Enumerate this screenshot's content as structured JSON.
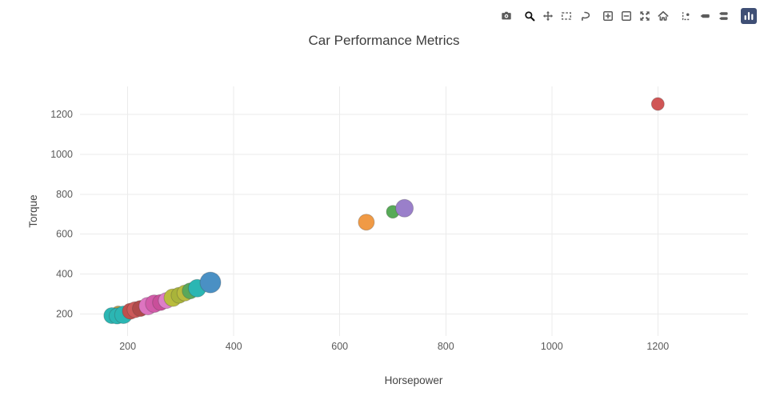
{
  "title": "Car Performance Metrics",
  "colors": {
    "logo_bg": "#3f4f75",
    "icon": "#5b5b5b",
    "grid": "#ebebeb",
    "tick_text": "#5a5a5a",
    "title_text": "#3d3d3d"
  },
  "modebar": {
    "logo_label": "Produced with Plotly",
    "groups": [
      [
        {
          "name": "camera",
          "label": "Download plot as a png",
          "active": false
        }
      ],
      [
        {
          "name": "zoom",
          "label": "Zoom",
          "active": true
        },
        {
          "name": "pan",
          "label": "Pan",
          "active": false
        },
        {
          "name": "box-select",
          "label": "Box Select",
          "active": false
        },
        {
          "name": "lasso",
          "label": "Lasso Select",
          "active": false
        }
      ],
      [
        {
          "name": "zoom-in",
          "label": "Zoom in",
          "active": false
        },
        {
          "name": "zoom-out",
          "label": "Zoom out",
          "active": false
        },
        {
          "name": "autoscale",
          "label": "Autoscale",
          "active": false
        },
        {
          "name": "home",
          "label": "Reset axes",
          "active": false
        }
      ],
      [
        {
          "name": "spikelines",
          "label": "Toggle Spike Lines",
          "active": false
        },
        {
          "name": "hover-closest",
          "label": "Show closest data on hover",
          "active": false
        },
        {
          "name": "hover-compare",
          "label": "Compare data on hover",
          "active": false
        }
      ]
    ]
  },
  "chart_data": {
    "type": "scatter",
    "title": "Car Performance Metrics",
    "xlabel": "Horsepower",
    "ylabel": "Torque",
    "xlim": [
      110,
      1370
    ],
    "ylim": [
      90,
      1340
    ],
    "xticks": [
      200,
      400,
      600,
      800,
      1000,
      1200
    ],
    "yticks": [
      200,
      400,
      600,
      800,
      1000,
      1200
    ],
    "grid": true,
    "legend": false,
    "points": [
      {
        "x": 182,
        "y": 208,
        "r": 8,
        "color": "#b8a14b"
      },
      {
        "x": 170,
        "y": 192,
        "r": 10,
        "color": "#2bb6b3"
      },
      {
        "x": 180,
        "y": 190,
        "r": 10,
        "color": "#2bb6b3"
      },
      {
        "x": 192,
        "y": 196,
        "r": 11,
        "color": "#2bb6b3"
      },
      {
        "x": 205,
        "y": 214,
        "r": 10,
        "color": "#c0504d"
      },
      {
        "x": 214,
        "y": 222,
        "r": 10,
        "color": "#cd5a5a"
      },
      {
        "x": 224,
        "y": 228,
        "r": 10,
        "color": "#b04a4a"
      },
      {
        "x": 238,
        "y": 240,
        "r": 11,
        "color": "#dd74c0"
      },
      {
        "x": 250,
        "y": 252,
        "r": 11,
        "color": "#d25ba9"
      },
      {
        "x": 262,
        "y": 258,
        "r": 10,
        "color": "#c94f9a"
      },
      {
        "x": 273,
        "y": 268,
        "r": 10,
        "color": "#de7ec7"
      },
      {
        "x": 285,
        "y": 282,
        "r": 11,
        "color": "#b9bc3e"
      },
      {
        "x": 297,
        "y": 294,
        "r": 10,
        "color": "#a9b43a"
      },
      {
        "x": 308,
        "y": 305,
        "r": 10,
        "color": "#b9bc3e"
      },
      {
        "x": 318,
        "y": 316,
        "r": 10,
        "color": "#5aa85a"
      },
      {
        "x": 331,
        "y": 329,
        "r": 11,
        "color": "#2bb6b3"
      },
      {
        "x": 356,
        "y": 358,
        "r": 13,
        "color": "#4a90c4"
      },
      {
        "x": 650,
        "y": 660,
        "r": 10,
        "color": "#f09a45"
      },
      {
        "x": 700,
        "y": 712,
        "r": 8,
        "color": "#57aa57"
      },
      {
        "x": 722,
        "y": 730,
        "r": 11,
        "color": "#9a7fca"
      },
      {
        "x": 1200,
        "y": 1252,
        "r": 8,
        "color": "#d05555"
      }
    ]
  }
}
